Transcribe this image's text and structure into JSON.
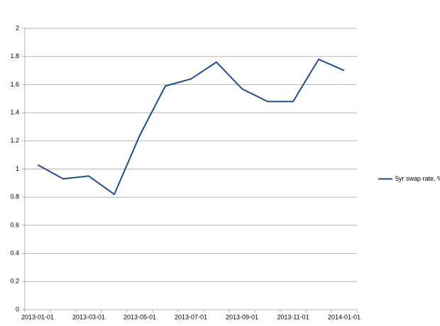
{
  "chart_data": {
    "type": "line",
    "categories": [
      "2013-01-01",
      null,
      "2013-03-01",
      null,
      "2013-05-01",
      null,
      "2013-07-01",
      null,
      "2013-09-01",
      null,
      "2013-11-01",
      null,
      "2014-01-01"
    ],
    "series": [
      {
        "name": "5yr swap rate, %",
        "color": "#1f4e8c",
        "values": [
          1.03,
          0.93,
          0.95,
          0.82,
          1.24,
          1.59,
          1.64,
          1.76,
          1.57,
          1.48,
          1.48,
          1.78,
          1.7
        ]
      }
    ],
    "ylim": [
      0,
      2
    ],
    "yticks": [
      0,
      0.2,
      0.4,
      0.6,
      0.8,
      1,
      1.2,
      1.4,
      1.6,
      1.8,
      2
    ],
    "grid": true,
    "legend": "right"
  }
}
